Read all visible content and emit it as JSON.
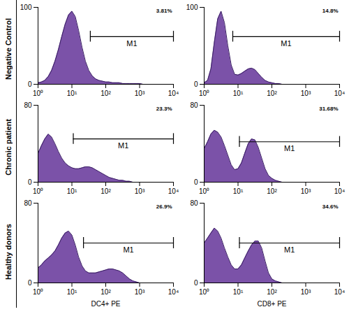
{
  "chart_data": [
    {
      "type": "area",
      "log": "x",
      "color": "#7b52a8",
      "ylabel": "Negative Control",
      "x": [
        1,
        1.26,
        1.58,
        2,
        2.51,
        3.16,
        3.98,
        5.01,
        6.31,
        7.94,
        10,
        12.6,
        15.8,
        20,
        25.1,
        31.6,
        39.8,
        50.1,
        63.1,
        79.4,
        100,
        126,
        158,
        200,
        251,
        316,
        398,
        501,
        631,
        794,
        1000,
        1260,
        1580,
        2000,
        2510,
        3160,
        3980,
        5010,
        6310,
        7940,
        10000
      ],
      "values": [
        2,
        3,
        5,
        10,
        18,
        30,
        45,
        62,
        78,
        90,
        95,
        88,
        70,
        48,
        30,
        18,
        11,
        7,
        5,
        4,
        3,
        3,
        2,
        2,
        2,
        1,
        1,
        1,
        1,
        1,
        1,
        0,
        0,
        0,
        0,
        0,
        0,
        0,
        0,
        0,
        0
      ],
      "xlim": [
        1,
        10000
      ],
      "xticks": [
        {
          "value": 1,
          "label": "10⁰"
        },
        {
          "value": 10,
          "label": "10¹"
        },
        {
          "value": 100,
          "label": "10²"
        },
        {
          "value": 1000,
          "label": "10³"
        },
        {
          "value": 10000,
          "label": "10⁴"
        }
      ],
      "ylim": [
        0,
        100
      ],
      "yticks": [
        0,
        100
      ],
      "gate": {
        "label": "M1",
        "x": [
          35,
          10000
        ],
        "y": 62
      },
      "annotations": [
        {
          "text": "3.81%"
        }
      ]
    },
    {
      "type": "area",
      "log": "x",
      "color": "#7b52a8",
      "x": [
        1,
        1.26,
        1.58,
        2,
        2.51,
        3.16,
        3.98,
        5.01,
        6.31,
        7.94,
        10,
        12.6,
        15.8,
        20,
        25.1,
        31.6,
        39.8,
        50.1,
        63.1,
        79.4,
        100,
        126,
        158,
        200,
        251,
        316,
        398,
        501,
        631,
        794,
        1000,
        1260,
        1580,
        2000,
        2510,
        3160,
        3980,
        5010,
        6310,
        7940,
        10000
      ],
      "values": [
        2,
        5,
        20,
        55,
        85,
        95,
        80,
        50,
        25,
        13,
        12,
        14,
        17,
        20,
        21,
        19,
        14,
        9,
        5,
        3,
        2,
        1,
        1,
        0,
        0,
        0,
        0,
        0,
        0,
        0,
        0,
        0,
        0,
        0,
        0,
        0,
        0,
        0,
        0,
        0,
        0
      ],
      "xlim": [
        1,
        10000
      ],
      "xticks": [
        {
          "value": 1,
          "label": "10⁰"
        },
        {
          "value": 10,
          "label": "10¹"
        },
        {
          "value": 100,
          "label": "10²"
        },
        {
          "value": 1000,
          "label": "10³"
        },
        {
          "value": 10000,
          "label": "10⁴"
        }
      ],
      "ylim": [
        0,
        100
      ],
      "yticks": [
        0,
        100
      ],
      "gate": {
        "label": "M1",
        "x": [
          7,
          10000
        ],
        "y": 62
      },
      "annotations": [
        {
          "text": "14.8%"
        }
      ]
    },
    {
      "type": "area",
      "log": "x",
      "color": "#7b52a8",
      "ylabel": "Chronic patient",
      "x": [
        1,
        1.26,
        1.58,
        2,
        2.51,
        3.16,
        3.98,
        5.01,
        6.31,
        7.94,
        10,
        12.6,
        15.8,
        20,
        25.1,
        31.6,
        39.8,
        50.1,
        63.1,
        79.4,
        100,
        126,
        158,
        200,
        251,
        316,
        398,
        501,
        631,
        794,
        1000,
        1260,
        1580,
        2000,
        2510,
        3160,
        3980,
        5010,
        6310,
        7940,
        10000
      ],
      "values": [
        30,
        38,
        45,
        50,
        47,
        40,
        32,
        25,
        20,
        17,
        15,
        14,
        14,
        15,
        16,
        16,
        15,
        13,
        11,
        9,
        7,
        5,
        4,
        3,
        2,
        2,
        1,
        1,
        0,
        0,
        0,
        0,
        0,
        0,
        0,
        0,
        0,
        0,
        0,
        0,
        0
      ],
      "xlim": [
        1,
        10000
      ],
      "xticks": [
        {
          "value": 1,
          "label": "10⁰"
        },
        {
          "value": 10,
          "label": "10¹"
        },
        {
          "value": 100,
          "label": "10²"
        },
        {
          "value": 1000,
          "label": "10³"
        },
        {
          "value": 10000,
          "label": "10⁴"
        }
      ],
      "ylim": [
        0,
        80
      ],
      "yticks": [
        0,
        80
      ],
      "gate": {
        "label": "M1",
        "x": [
          11,
          10000
        ],
        "y": 45
      },
      "annotations": [
        {
          "text": "23.3%"
        }
      ]
    },
    {
      "type": "area",
      "log": "x",
      "color": "#7b52a8",
      "x": [
        1,
        1.26,
        1.58,
        2,
        2.51,
        3.16,
        3.98,
        5.01,
        6.31,
        7.94,
        10,
        12.6,
        15.8,
        20,
        25.1,
        31.6,
        39.8,
        50.1,
        63.1,
        79.4,
        100,
        126,
        158,
        200,
        251,
        316,
        398,
        501,
        631,
        794,
        1000,
        1260,
        1580,
        2000,
        2510,
        3160,
        3980,
        5010,
        6310,
        7940,
        10000
      ],
      "values": [
        35,
        42,
        50,
        54,
        52,
        47,
        38,
        28,
        18,
        13,
        14,
        20,
        30,
        40,
        45,
        44,
        36,
        25,
        14,
        7,
        4,
        2,
        1,
        0,
        0,
        0,
        0,
        0,
        0,
        0,
        0,
        0,
        0,
        0,
        0,
        0,
        0,
        0,
        0,
        0,
        0
      ],
      "xlim": [
        1,
        10000
      ],
      "xticks": [
        {
          "value": 1,
          "label": "10⁰"
        },
        {
          "value": 10,
          "label": "10¹"
        },
        {
          "value": 100,
          "label": "10²"
        },
        {
          "value": 1000,
          "label": "10³"
        },
        {
          "value": 10000,
          "label": "10⁴"
        }
      ],
      "ylim": [
        0,
        80
      ],
      "yticks": [
        0,
        80
      ],
      "gate": {
        "label": "M1",
        "x": [
          11,
          10000
        ],
        "y": 42
      },
      "annotations": [
        {
          "text": "31.68%"
        }
      ]
    },
    {
      "type": "area",
      "log": "x",
      "color": "#7b52a8",
      "ylabel": "Healthy donors",
      "xlabel": "DC4+ PE",
      "x": [
        1,
        1.26,
        1.58,
        2,
        2.51,
        3.16,
        3.98,
        5.01,
        6.31,
        7.94,
        10,
        12.6,
        15.8,
        20,
        25.1,
        31.6,
        39.8,
        50.1,
        63.1,
        79.4,
        100,
        126,
        158,
        200,
        251,
        316,
        398,
        501,
        631,
        794,
        1000,
        1260,
        1580,
        2000,
        2510,
        3160,
        3980,
        5010,
        6310,
        7940,
        10000
      ],
      "values": [
        15,
        18,
        22,
        25,
        28,
        32,
        38,
        45,
        50,
        52,
        48,
        38,
        26,
        17,
        12,
        10,
        10,
        10,
        11,
        12,
        13,
        14,
        14,
        13,
        12,
        10,
        7,
        4,
        2,
        1,
        0,
        0,
        0,
        0,
        0,
        0,
        0,
        0,
        0,
        0,
        0
      ],
      "xlim": [
        1,
        10000
      ],
      "xticks": [
        {
          "value": 1,
          "label": "10⁰"
        },
        {
          "value": 10,
          "label": "10¹"
        },
        {
          "value": 100,
          "label": "10²"
        },
        {
          "value": 1000,
          "label": "10³"
        },
        {
          "value": 10000,
          "label": "10⁴"
        }
      ],
      "ylim": [
        0,
        80
      ],
      "yticks": [
        0,
        80
      ],
      "gate": {
        "label": "M1",
        "x": [
          22,
          10000
        ],
        "y": 40
      },
      "annotations": [
        {
          "text": "26.9%"
        }
      ]
    },
    {
      "type": "area",
      "log": "x",
      "color": "#7b52a8",
      "xlabel": "CD8+ PE",
      "x": [
        1,
        1.26,
        1.58,
        2,
        2.51,
        3.16,
        3.98,
        5.01,
        6.31,
        7.94,
        10,
        12.6,
        15.8,
        20,
        25.1,
        31.6,
        39.8,
        50.1,
        63.1,
        79.4,
        100,
        126,
        158,
        200,
        251,
        316,
        398,
        501,
        631,
        794,
        1000,
        1260,
        1580,
        2000,
        2510,
        3160,
        3980,
        5010,
        6310,
        7940,
        10000
      ],
      "values": [
        40,
        45,
        50,
        55,
        52,
        45,
        35,
        26,
        18,
        14,
        14,
        18,
        25,
        32,
        38,
        42,
        42,
        35,
        22,
        10,
        4,
        2,
        1,
        0,
        0,
        0,
        0,
        0,
        0,
        0,
        0,
        0,
        0,
        0,
        0,
        0,
        0,
        0,
        0,
        0,
        0
      ],
      "xlim": [
        1,
        10000
      ],
      "xticks": [
        {
          "value": 1,
          "label": "10⁰"
        },
        {
          "value": 10,
          "label": "10¹"
        },
        {
          "value": 100,
          "label": "10²"
        },
        {
          "value": 1000,
          "label": "10³"
        },
        {
          "value": 10000,
          "label": "10⁴"
        }
      ],
      "ylim": [
        0,
        80
      ],
      "yticks": [
        0,
        80
      ],
      "gate": {
        "label": "M1",
        "x": [
          11,
          10000
        ],
        "y": 40
      },
      "annotations": [
        {
          "text": "34.6%"
        }
      ]
    }
  ]
}
